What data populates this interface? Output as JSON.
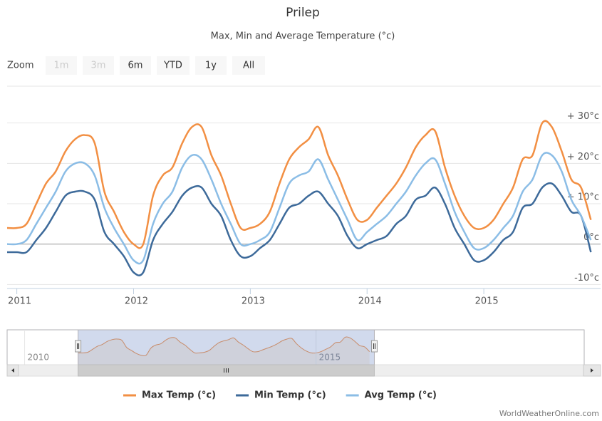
{
  "chart_data": {
    "type": "line",
    "title": "Prilep",
    "subtitle": "Max, Min and Average Temperature (°c)",
    "zoom": {
      "label": "Zoom",
      "buttons": [
        "1m",
        "3m",
        "6m",
        "YTD",
        "1y",
        "All"
      ],
      "enabled": [
        false,
        false,
        true,
        true,
        true,
        true
      ]
    },
    "x": [
      2010.917,
      2011,
      2011.083,
      2011.167,
      2011.25,
      2011.333,
      2011.417,
      2011.5,
      2011.583,
      2011.667,
      2011.75,
      2011.833,
      2011.917,
      2012,
      2012.083,
      2012.167,
      2012.25,
      2012.333,
      2012.417,
      2012.5,
      2012.583,
      2012.667,
      2012.75,
      2012.833,
      2012.917,
      2013,
      2013.083,
      2013.167,
      2013.25,
      2013.333,
      2013.417,
      2013.5,
      2013.583,
      2013.667,
      2013.75,
      2013.833,
      2013.917,
      2014,
      2014.083,
      2014.167,
      2014.25,
      2014.333,
      2014.417,
      2014.5,
      2014.583,
      2014.667,
      2014.75,
      2014.833,
      2014.917,
      2015,
      2015.083,
      2015.167,
      2015.25,
      2015.333,
      2015.417,
      2015.5,
      2015.583,
      2015.667,
      2015.75,
      2015.833,
      2015.917
    ],
    "xlim": [
      2010.917,
      2016
    ],
    "xticks": [
      2011,
      2012,
      2013,
      2014,
      2015
    ],
    "ylim": [
      -11,
      40
    ],
    "yticks": [
      {
        "value": -10,
        "label": "-10°c"
      },
      {
        "value": 0,
        "label": "0°c"
      },
      {
        "value": 10,
        "label": "+ 10°c"
      },
      {
        "value": 20,
        "label": "+ 20°c"
      },
      {
        "value": 30,
        "label": "+ 30°c"
      }
    ],
    "grid": true,
    "series": [
      {
        "name": "Max Temp (°c)",
        "color": "#f28f43",
        "values": [
          4,
          4,
          5,
          10,
          15,
          18,
          23,
          26,
          27,
          25,
          13,
          8,
          3,
          0,
          0,
          12,
          17,
          19,
          25,
          29,
          29,
          22,
          17,
          10,
          4,
          4,
          5,
          8,
          15,
          21,
          24,
          26,
          29,
          22,
          17,
          11,
          6,
          6,
          9,
          12,
          15,
          19,
          24,
          27,
          28,
          19,
          12,
          7,
          4,
          4,
          6,
          10,
          14,
          21,
          22,
          30,
          29,
          23,
          16,
          14,
          6
        ]
      },
      {
        "name": "Min Temp (°c)",
        "color": "#3d6a9a",
        "values": [
          -2,
          -2,
          -2,
          1,
          4,
          8,
          12,
          13,
          13,
          11,
          3,
          0,
          -3,
          -7,
          -7,
          1,
          5,
          8,
          12,
          14,
          14,
          10,
          7,
          1,
          -3,
          -3,
          -1,
          1,
          5,
          9,
          10,
          12,
          13,
          10,
          7,
          2,
          -1,
          0,
          1,
          2,
          5,
          7,
          11,
          12,
          14,
          10,
          4,
          0,
          -4,
          -4,
          -2,
          1,
          3,
          9,
          10,
          14,
          15,
          12,
          8,
          7,
          -2
        ]
      },
      {
        "name": "Avg Temp (°c)",
        "color": "#8bbde6",
        "values": [
          0,
          0,
          1,
          5,
          9,
          13,
          18,
          20,
          20,
          17,
          9,
          4,
          0,
          -4,
          -4,
          5,
          10,
          13,
          19,
          22,
          21,
          16,
          10,
          5,
          0,
          0,
          1,
          3,
          9,
          15,
          17,
          18,
          21,
          16,
          11,
          6,
          1,
          3,
          5,
          7,
          10,
          13,
          17,
          20,
          21,
          15,
          8,
          3,
          -1,
          -1,
          1,
          4,
          7,
          13,
          16,
          22,
          22,
          18,
          11,
          7,
          1
        ]
      }
    ],
    "navigator": {
      "xlim": [
        2009.7,
        2019.6
      ],
      "xticks": [
        2010,
        2015
      ]
    },
    "credits": "WorldWeatherOnline.com"
  }
}
